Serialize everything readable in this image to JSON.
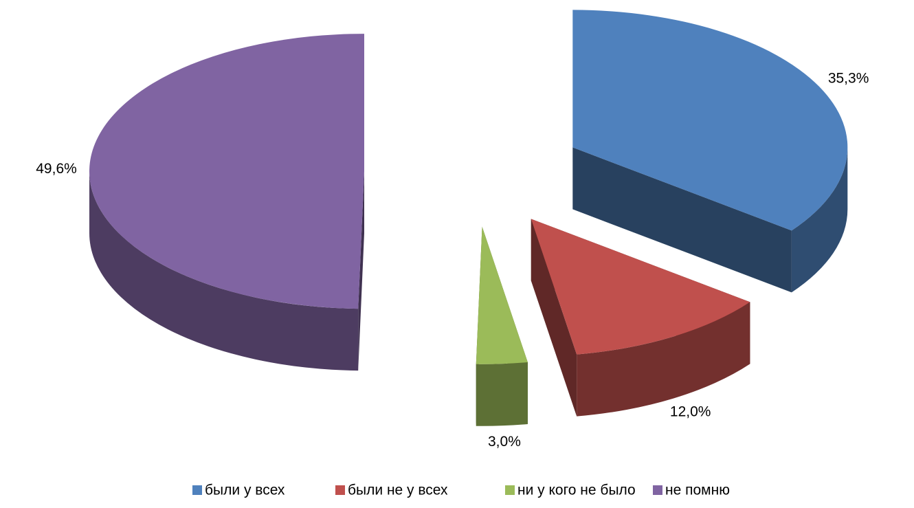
{
  "chart_data": {
    "type": "pie",
    "categories": [
      "были у всех",
      "были не у всех",
      "ни у кого не было",
      "не помню"
    ],
    "values": [
      35.3,
      12.0,
      3.0,
      49.6
    ],
    "value_labels": [
      "35,3%",
      "12,0%",
      "3,0%",
      "49,6%"
    ],
    "colors": [
      "#4f81bd",
      "#c0504d",
      "#9bbb59",
      "#8064a2"
    ],
    "legend": "bottom"
  }
}
